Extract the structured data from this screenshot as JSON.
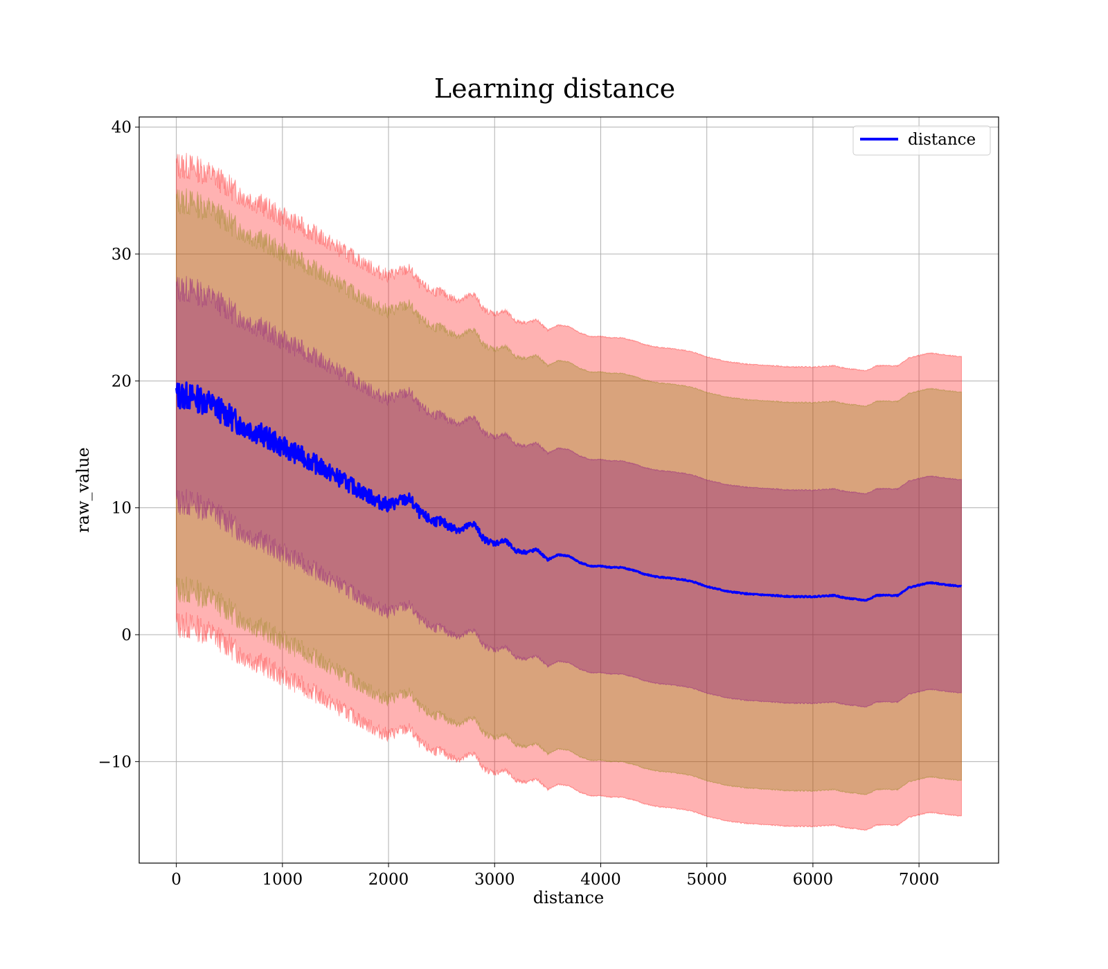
{
  "chart_data": {
    "type": "line",
    "title": "Learning distance",
    "xlabel": "distance",
    "ylabel": "raw_value",
    "xlim": [
      -350,
      7750
    ],
    "ylim": [
      -18,
      40.8
    ],
    "xticks": [
      0,
      1000,
      2000,
      3000,
      4000,
      5000,
      6000,
      7000
    ],
    "yticks": [
      -10,
      0,
      10,
      20,
      30,
      40
    ],
    "ytick_labels": [
      "−10",
      "0",
      "10",
      "20",
      "30",
      "40"
    ],
    "grid": true,
    "legend": {
      "position": "top-right",
      "entries": [
        "distance"
      ]
    },
    "series": [
      {
        "name": "distance",
        "color": "#0000ff",
        "x": [
          0,
          100,
          200,
          300,
          400,
          500,
          600,
          700,
          800,
          900,
          1000,
          1100,
          1200,
          1300,
          1400,
          1500,
          1600,
          1700,
          1800,
          1900,
          2000,
          2100,
          2200,
          2300,
          2400,
          2500,
          2600,
          2700,
          2800,
          2900,
          3000,
          3100,
          3200,
          3300,
          3400,
          3500,
          3600,
          3700,
          3800,
          3900,
          4000,
          4100,
          4200,
          4300,
          4400,
          4500,
          4600,
          4700,
          4800,
          4900,
          5000,
          5200,
          5400,
          5600,
          5800,
          6000,
          6200,
          6300,
          6500,
          6600,
          6800,
          6900,
          7100,
          7400
        ],
        "y": [
          18.9,
          18.8,
          18.6,
          18.3,
          17.8,
          17.2,
          16.6,
          16.2,
          15.8,
          15.3,
          14.8,
          14.4,
          14.0,
          13.5,
          13.0,
          12.5,
          12.0,
          11.5,
          11.0,
          10.5,
          10.2,
          10.5,
          10.7,
          9.5,
          9.0,
          8.9,
          8.4,
          8.3,
          8.8,
          7.5,
          7.2,
          7.4,
          6.6,
          6.5,
          6.7,
          5.9,
          6.3,
          6.2,
          5.7,
          5.4,
          5.4,
          5.3,
          5.3,
          5.1,
          4.8,
          4.6,
          4.5,
          4.4,
          4.3,
          4.1,
          3.8,
          3.4,
          3.2,
          3.1,
          3.0,
          3.0,
          3.1,
          2.9,
          2.7,
          3.1,
          3.1,
          3.7,
          4.1,
          3.8
        ]
      }
    ],
    "bands": [
      {
        "color": "#ff0000",
        "opacity": 0.3,
        "offset": 18.1
      },
      {
        "color": "#808000",
        "opacity": 0.3,
        "offset": 15.3
      },
      {
        "color": "#800080",
        "opacity": 0.3,
        "offset": 8.4
      }
    ]
  }
}
